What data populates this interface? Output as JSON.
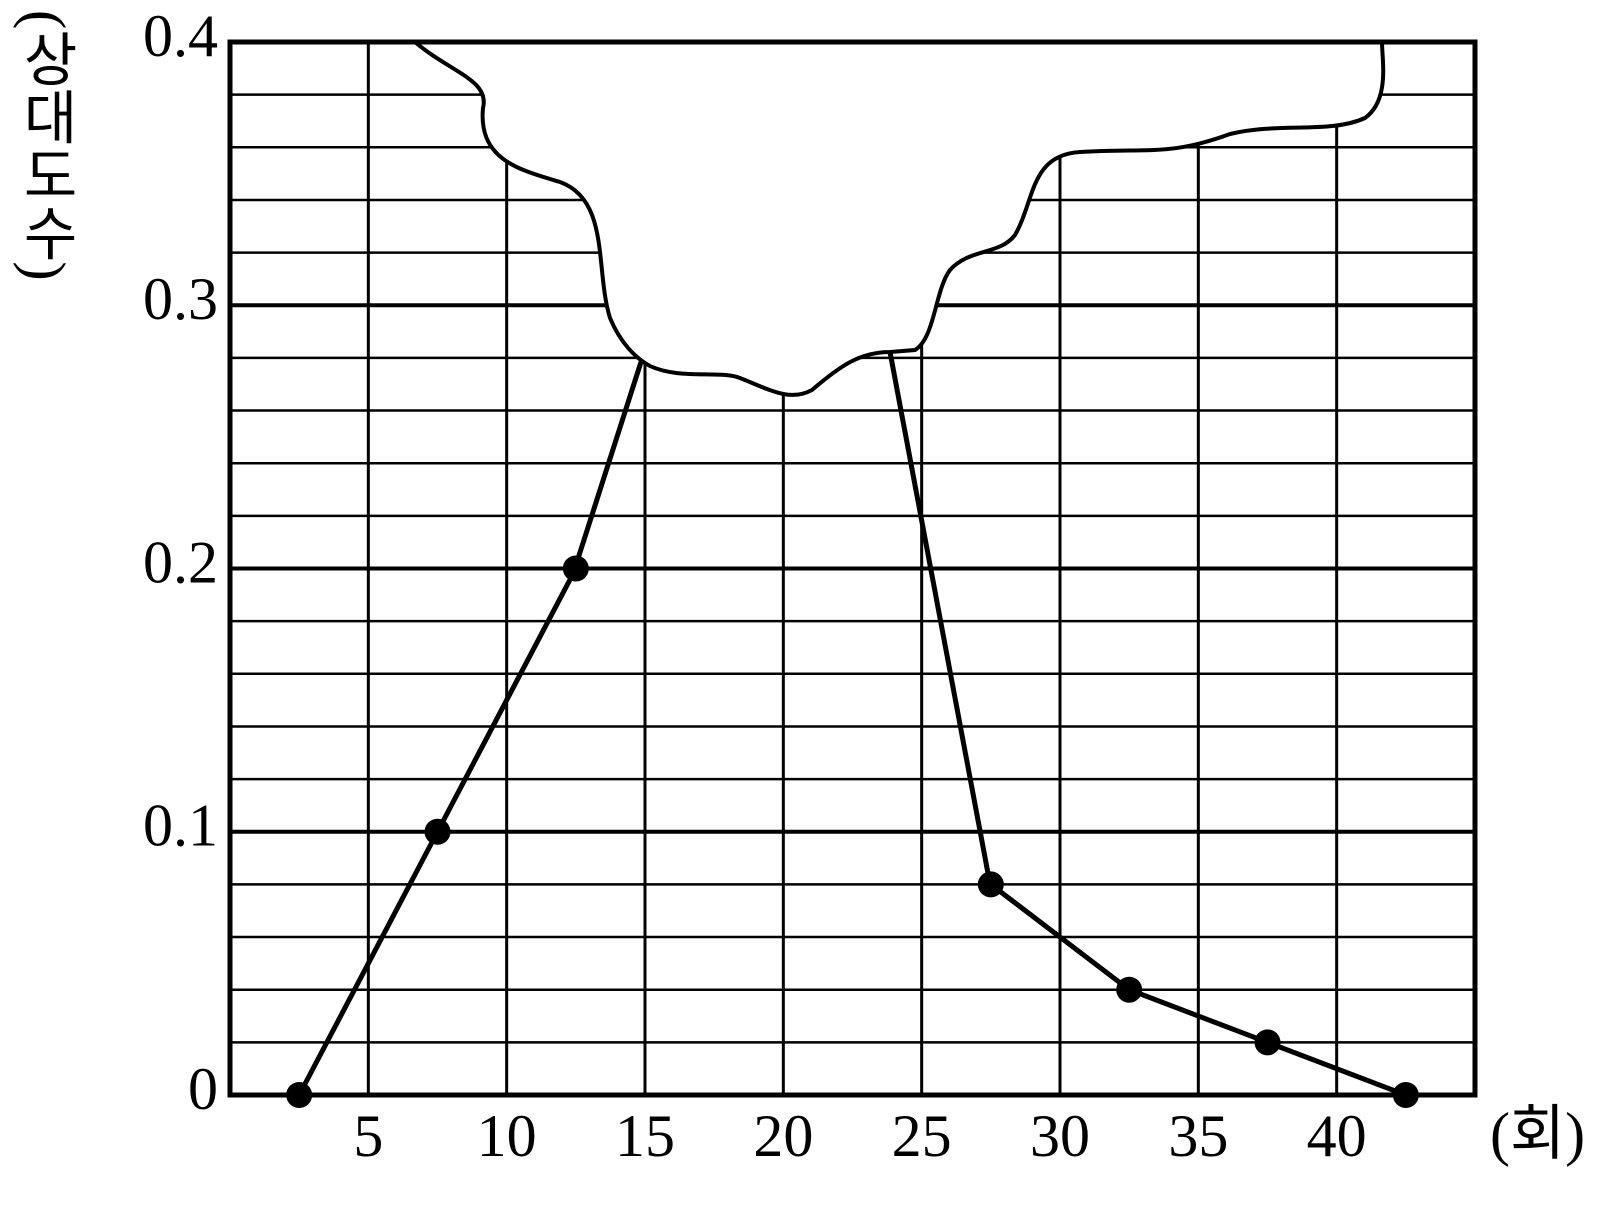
{
  "chart_data": {
    "type": "line",
    "x": [
      2.5,
      7.5,
      12.5,
      17.5,
      22.5,
      27.5,
      32.5,
      37.5,
      42.5
    ],
    "values": [
      0,
      0.1,
      0.2,
      null,
      null,
      0.08,
      0.04,
      0.02,
      0
    ],
    "color": "#000000",
    "xlim": [
      0,
      45
    ],
    "xticks": [
      5,
      10,
      15,
      20,
      25,
      30,
      35,
      40
    ],
    "ylim": [
      0,
      0.4
    ],
    "yticks": [
      0,
      0.1,
      0.2,
      0.3,
      0.4
    ],
    "y_minor_ticks": [
      0.02,
      0.04,
      0.06,
      0.08,
      0.12,
      0.14,
      0.16,
      0.18,
      0.22,
      0.24,
      0.26,
      0.28,
      0.32,
      0.34,
      0.36,
      0.38
    ],
    "grid": true,
    "y_label": "(상대도수)",
    "x_label": "(회)"
  }
}
